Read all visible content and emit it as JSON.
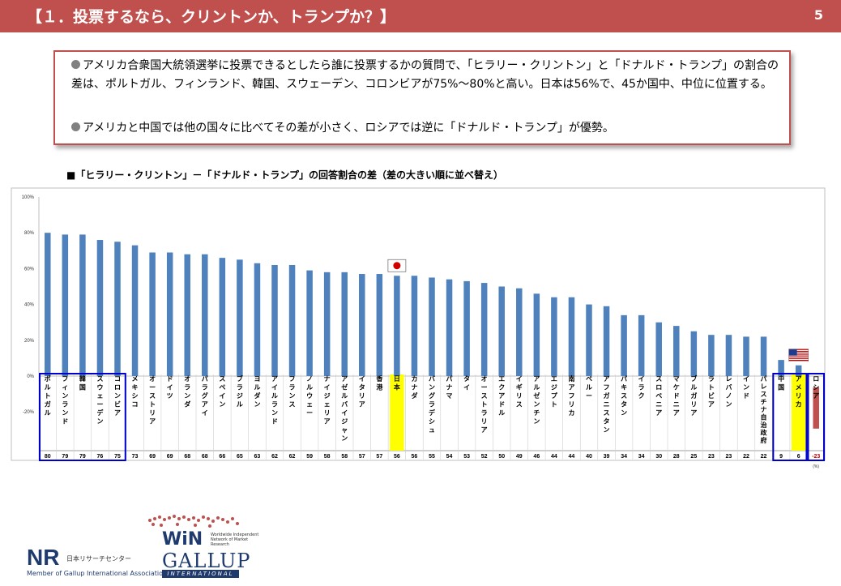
{
  "header": {
    "title": "【１．投票するなら、クリントンか、トランプか？】",
    "page_number": "5"
  },
  "summary": {
    "bullet1": "アメリカ合衆国大統領選挙に投票できるとしたら誰に投票するかの質問で、「ヒラリー・クリントン」と「ドナルド・トランプ」の割合の差は、ポルトガル、フィンランド、韓国、スウェーデン、コロンビアが75%～80%と高い。日本は56%で、45か国中、中位に位置する。",
    "bullet2": "アメリカと中国では他の国々に比べてその差が小さく、ロシアでは逆に「ドナルド・トランプ」が優勢。"
  },
  "chart_title": "■「ヒラリー・クリントン」－「ドナルド・トランプ」の回答割合の差（差の大きい順に並べ替え）",
  "colors": {
    "header": "#c0504d",
    "bar": "#4f81bd",
    "bar_negative": "#c0504d",
    "highlight": "#ffff00",
    "highlight_box": "#0000cc"
  },
  "chart_data": {
    "type": "bar",
    "title": "「ヒラリー・クリントン」－「ドナルド・トランプ」の回答割合の差（差の大きい順に並べ替え）",
    "unit_label": "(%)",
    "ylim": [
      -30,
      100
    ],
    "y_ticks": [
      "100%",
      "80%",
      "60%",
      "40%",
      "20%",
      "0%",
      "-20%"
    ],
    "y_tick_values": [
      100,
      80,
      60,
      40,
      20,
      0,
      -20
    ],
    "grid": false,
    "categories": [
      "ポルトガル",
      "フィンランド",
      "韓国",
      "スウェーデン",
      "コロンビア",
      "メキシコ",
      "オーストリア",
      "ドイツ",
      "オランダ",
      "パラグアイ",
      "スペイン",
      "ブラジル",
      "ヨルダン",
      "アイルランド",
      "フランス",
      "ノルウェー",
      "ナイジェリア",
      "アゼルバイジャン",
      "イタリア",
      "香港",
      "日本",
      "カナダ",
      "バングラデシュ",
      "パナマ",
      "タイ",
      "オーストラリア",
      "エクアドル",
      "イギリス",
      "アルゼンチン",
      "エジプト",
      "南アフリカ",
      "ペルー",
      "アフガニスタン",
      "パキスタン",
      "イラク",
      "スロベニア",
      "マケドニア",
      "ブルガリア",
      "ラトビア",
      "レバノン",
      "インド",
      "パレスチナ自治政府",
      "中国",
      "アメリカ",
      "ロシア"
    ],
    "values": [
      80,
      79,
      79,
      76,
      75,
      73,
      69,
      69,
      68,
      68,
      66,
      65,
      63,
      62,
      62,
      59,
      58,
      58,
      57,
      57,
      56,
      56,
      55,
      54,
      53,
      52,
      50,
      49,
      46,
      44,
      44,
      40,
      39,
      34,
      34,
      30,
      28,
      25,
      23,
      23,
      22,
      22,
      9,
      6,
      -23
    ],
    "highlighted": [
      "日本",
      "アメリカ"
    ],
    "boxed_groups": [
      [
        "ポルトガル",
        "コロンビア"
      ],
      [
        "中国",
        "アメリカ"
      ],
      [
        "ロシア",
        "ロシア"
      ]
    ],
    "flag_markers": [
      {
        "category": "日本",
        "icon": "japan-flag-icon"
      },
      {
        "category": "アメリカ",
        "icon": "usa-flag-icon"
      }
    ]
  },
  "footer": {
    "nr_logo": "NR",
    "nr_name": "日本リサーチセンター",
    "nr_member": "Member of Gallup International Association",
    "win_logo": "WiN",
    "win_desc": "Worldwide Independent Network of Market Research",
    "gallup": "GALLUP",
    "international": "INTERNATIONAL"
  }
}
